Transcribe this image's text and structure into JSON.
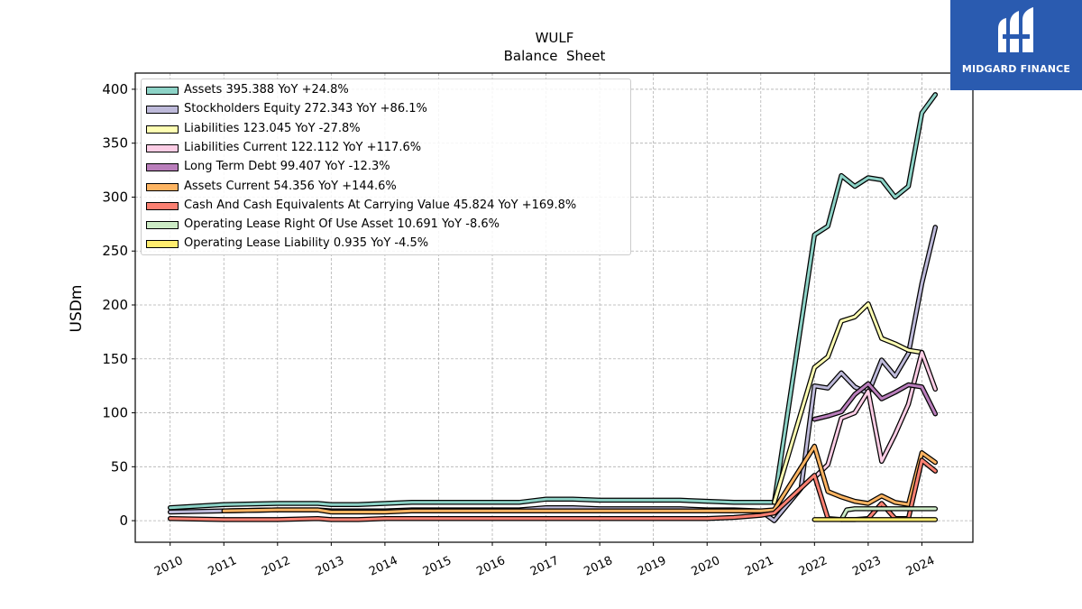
{
  "chart_data": {
    "type": "line",
    "title": "WULF",
    "subtitle": "Balance  Sheet",
    "ylabel": "USDm",
    "xlabel": "",
    "ylim": [
      -20,
      415
    ],
    "xlim": [
      2009.35,
      2024.95
    ],
    "yticks": [
      0,
      50,
      100,
      150,
      200,
      250,
      300,
      350,
      400
    ],
    "xticks": [
      "2010",
      "2011",
      "2012",
      "2013",
      "2014",
      "2015",
      "2016",
      "2017",
      "2018",
      "2019",
      "2020",
      "2021",
      "2022",
      "2023",
      "2024"
    ],
    "grid": true,
    "legend_position": "upper-left",
    "series": [
      {
        "name": "Assets  395.388 YoY +24.8%",
        "color": "#8dd3c7",
        "x": [
          2010.0,
          2011.0,
          2012.0,
          2012.75,
          2013.0,
          2013.5,
          2014.0,
          2014.5,
          2015.0,
          2015.5,
          2016.0,
          2016.5,
          2017.0,
          2017.5,
          2018.0,
          2018.5,
          2019.0,
          2019.5,
          2020.0,
          2020.5,
          2021.0,
          2021.25,
          2022.0,
          2022.25,
          2022.5,
          2022.75,
          2023.0,
          2023.25,
          2023.5,
          2023.75,
          2024.0,
          2024.25
        ],
        "y": [
          12,
          15,
          16,
          16,
          15,
          15,
          16,
          17,
          17,
          17,
          17,
          17,
          20,
          20,
          19,
          19,
          19,
          19,
          18,
          17,
          17,
          17,
          265,
          273,
          320,
          310,
          318,
          316,
          300,
          310,
          378,
          395
        ]
      },
      {
        "name": "Stockholders Equity  272.343 YoY +86.1%",
        "color": "#bebada",
        "x": [
          2010.0,
          2011.0,
          2012.0,
          2012.75,
          2013.0,
          2013.5,
          2014.0,
          2014.5,
          2015.0,
          2015.5,
          2016.0,
          2016.5,
          2017.0,
          2017.5,
          2018.0,
          2018.5,
          2019.0,
          2019.5,
          2020.0,
          2020.5,
          2021.0,
          2021.25,
          2021.75,
          2022.0,
          2022.25,
          2022.5,
          2022.75,
          2023.0,
          2023.25,
          2023.5,
          2023.75,
          2024.0,
          2024.25
        ],
        "y": [
          8,
          9,
          10,
          10,
          9,
          9,
          9,
          10,
          10,
          10,
          10,
          10,
          12,
          12,
          11,
          11,
          11,
          11,
          10,
          10,
          9,
          0,
          30,
          125,
          123,
          137,
          124,
          118,
          149,
          134,
          155,
          220,
          272
        ]
      },
      {
        "name": "Liabilities  123.045 YoY -27.8%",
        "color": "#ffffb3",
        "x": [
          2021.25,
          2022.0,
          2022.25,
          2022.5,
          2022.75,
          2023.0,
          2023.25,
          2023.5,
          2023.75,
          2024.0
        ],
        "y": [
          17,
          142,
          152,
          185,
          189,
          201,
          169,
          164,
          158,
          156
        ]
      },
      {
        "name": "Liabilities Current  122.112 YoY +117.6%",
        "color": "#fccde5",
        "x": [
          2022.0,
          2022.25,
          2022.5,
          2022.75,
          2023.0,
          2023.25,
          2023.5,
          2023.75,
          2024.0,
          2024.25
        ],
        "y": [
          40,
          52,
          95,
          100,
          120,
          55,
          80,
          108,
          156,
          122
        ]
      },
      {
        "name": "Long Term Debt  99.407 YoY -12.3%",
        "color": "#b97ebb",
        "x": [
          2022.0,
          2022.25,
          2022.5,
          2022.75,
          2023.0,
          2023.25,
          2023.5,
          2023.75,
          2024.0,
          2024.25
        ],
        "y": [
          94,
          97,
          101,
          117,
          127,
          113,
          119,
          126,
          124,
          99
        ]
      },
      {
        "name": "Assets Current  54.356 YoY +144.6%",
        "color": "#fdb462",
        "x": [
          2011.0,
          2012.0,
          2012.75,
          2013.0,
          2013.5,
          2014.0,
          2014.5,
          2015.0,
          2015.5,
          2016.0,
          2016.5,
          2017.0,
          2017.5,
          2018.0,
          2018.5,
          2019.0,
          2019.5,
          2020.0,
          2020.5,
          2021.0,
          2021.25,
          2022.0,
          2022.25,
          2022.5,
          2022.75,
          2023.0,
          2023.25,
          2023.5,
          2023.75,
          2024.0,
          2024.25
        ],
        "y": [
          9,
          10,
          10,
          8,
          8,
          8,
          9,
          9,
          9,
          9,
          9,
          9,
          9,
          9,
          9,
          9,
          9,
          9,
          9,
          9,
          10,
          69,
          27,
          22,
          18,
          16,
          23,
          17,
          15,
          63,
          54
        ]
      },
      {
        "name": "Cash And Cash Equivalents At Carrying Value  45.824 YoY +169.8%",
        "color": "#fb8072",
        "x": [
          2010.0,
          2011.0,
          2012.0,
          2012.75,
          2013.0,
          2013.5,
          2014.0,
          2014.5,
          2015.0,
          2015.5,
          2016.0,
          2016.5,
          2017.0,
          2017.5,
          2018.0,
          2018.5,
          2019.0,
          2019.5,
          2020.0,
          2020.5,
          2021.0,
          2021.25,
          2022.0,
          2022.25,
          2022.5,
          2022.75,
          2023.0,
          2023.25,
          2023.5,
          2023.75,
          2024.0,
          2024.25
        ],
        "y": [
          2,
          1,
          1,
          2,
          1,
          1,
          2,
          2,
          2,
          2,
          2,
          2,
          2,
          2,
          2,
          2,
          2,
          2,
          2,
          3,
          5,
          7,
          42,
          2,
          1,
          1,
          2,
          16,
          2,
          2,
          56,
          46
        ]
      },
      {
        "name": "Operating Lease Right Of Use Asset  10.691 YoY -8.6%",
        "color": "#ccebc5",
        "x": [
          2022.5,
          2022.6,
          2022.75,
          2023.0,
          2023.25,
          2023.5,
          2023.75,
          2024.0,
          2024.25
        ],
        "y": [
          1,
          10,
          11,
          11,
          11,
          11,
          11,
          11,
          11
        ]
      },
      {
        "name": "Operating Lease Liability  0.935 YoY -4.5%",
        "color": "#ffed6f",
        "x": [
          2022.0,
          2022.5,
          2023.0,
          2023.5,
          2024.0,
          2024.25
        ],
        "y": [
          1,
          1,
          1,
          1,
          1,
          1
        ]
      }
    ]
  },
  "logo": {
    "text": "MIDGARD FINANCE"
  }
}
